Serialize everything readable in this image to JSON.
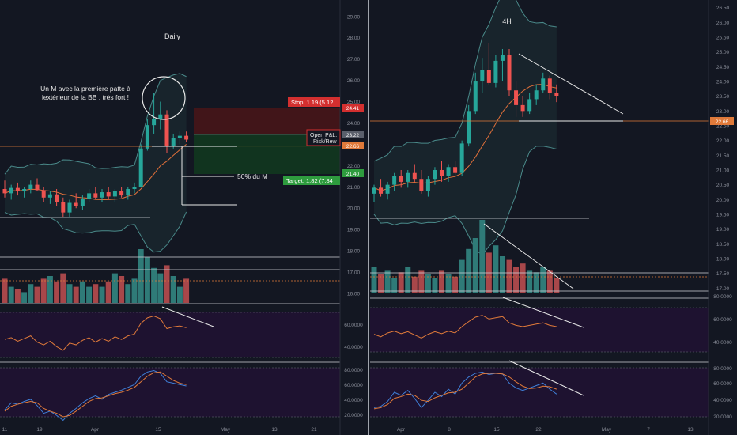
{
  "colors": {
    "background": "#131722",
    "bull": "#26a69a",
    "bear": "#ef5350",
    "vol_bull": "#2f7b78",
    "vol_bear": "#a8474a",
    "bb": "#4a8a8a",
    "ma": "#e0703a",
    "panel_bg": "#1e1230",
    "stoch_k": "#3f7fd8",
    "stoch_d": "#e07a3a",
    "axis_text": "#8b8f9a",
    "stop_box": "#d32f2f",
    "target_box": "#2e9c3e",
    "price_box": "#5a5f6b",
    "level_box": "#e07a3a",
    "divider": "#d0d3da",
    "line_white": "#e8e8e8"
  },
  "left_panel": {
    "title": "Daily",
    "annotation_line1": "Un M avec la première patte à",
    "annotation_line2": "lextérieur de la BB , très fort !",
    "fifty_label": "50% du M",
    "stop_label": "Stop: 1.19 (5.12",
    "target_label": "Target: 1.82 (7.84",
    "open_pl_line1": "Open P&L:",
    "open_pl_line2": "Risk/Rew",
    "price_tags": [
      "24.41",
      "23.22",
      "22.66",
      "21.40"
    ],
    "y_ticks": [
      "29.00",
      "28.00",
      "27.00",
      "26.00",
      "25.00",
      "24.00",
      "23.00",
      "22.00",
      "21.00",
      "20.00",
      "19.00",
      "18.00",
      "17.00",
      "16.00"
    ],
    "x_ticks": [
      "11",
      "19",
      "Apr",
      "15",
      "May",
      "13",
      "21"
    ],
    "rsi_ticks": [
      "60.0000",
      "40.0000"
    ],
    "stoch_ticks": [
      "80.0000",
      "60.0000",
      "40.0000",
      "20.0000"
    ]
  },
  "right_panel": {
    "title": "4H",
    "price_tags": [
      "22.66"
    ],
    "y_ticks": [
      "26.50",
      "26.00",
      "25.50",
      "25.00",
      "24.50",
      "24.00",
      "23.50",
      "23.00",
      "22.50",
      "22.00",
      "21.50",
      "21.00",
      "20.50",
      "20.00",
      "19.50",
      "19.00",
      "18.50",
      "18.00",
      "17.50",
      "17.00"
    ],
    "x_ticks": [
      "Apr",
      "8",
      "15",
      "22",
      "May",
      "7",
      "13"
    ],
    "rsi_ticks": [
      "80.0000",
      "60.0000",
      "40.0000"
    ],
    "stoch_ticks": [
      "80.0000",
      "60.0000",
      "40.0000",
      "20.0000"
    ]
  },
  "chart_data": [
    {
      "type": "candlestick",
      "title": "Daily",
      "ylim": [
        16,
        29.4
      ],
      "candles": [
        {
          "o": 20.9,
          "h": 21.3,
          "l": 20.5,
          "c": 20.7
        },
        {
          "o": 20.7,
          "h": 21.1,
          "l": 20.4,
          "c": 20.95
        },
        {
          "o": 20.95,
          "h": 21.2,
          "l": 20.6,
          "c": 20.8
        },
        {
          "o": 20.8,
          "h": 21.0,
          "l": 20.5,
          "c": 20.9
        },
        {
          "o": 20.9,
          "h": 21.3,
          "l": 20.7,
          "c": 21.1
        },
        {
          "o": 21.1,
          "h": 21.4,
          "l": 20.8,
          "c": 20.85
        },
        {
          "o": 20.85,
          "h": 21.0,
          "l": 20.3,
          "c": 20.5
        },
        {
          "o": 20.5,
          "h": 20.8,
          "l": 20.2,
          "c": 20.65
        },
        {
          "o": 20.65,
          "h": 20.9,
          "l": 20.1,
          "c": 20.3
        },
        {
          "o": 20.3,
          "h": 20.5,
          "l": 19.6,
          "c": 19.8
        },
        {
          "o": 19.8,
          "h": 20.4,
          "l": 19.6,
          "c": 20.25
        },
        {
          "o": 20.25,
          "h": 20.7,
          "l": 20.0,
          "c": 20.1
        },
        {
          "o": 20.1,
          "h": 20.6,
          "l": 19.9,
          "c": 20.45
        },
        {
          "o": 20.45,
          "h": 20.9,
          "l": 20.3,
          "c": 20.7
        },
        {
          "o": 20.7,
          "h": 21.0,
          "l": 20.4,
          "c": 20.5
        },
        {
          "o": 20.5,
          "h": 20.9,
          "l": 20.3,
          "c": 20.75
        },
        {
          "o": 20.75,
          "h": 21.0,
          "l": 20.4,
          "c": 20.55
        },
        {
          "o": 20.55,
          "h": 20.9,
          "l": 20.3,
          "c": 20.8
        },
        {
          "o": 20.8,
          "h": 21.0,
          "l": 20.5,
          "c": 20.6
        },
        {
          "o": 20.6,
          "h": 21.0,
          "l": 20.4,
          "c": 20.9
        },
        {
          "o": 20.9,
          "h": 21.2,
          "l": 20.7,
          "c": 21.0
        },
        {
          "o": 21.0,
          "h": 23.0,
          "l": 21.0,
          "c": 22.8
        },
        {
          "o": 22.8,
          "h": 24.2,
          "l": 22.7,
          "c": 23.9
        },
        {
          "o": 23.9,
          "h": 25.4,
          "l": 23.5,
          "c": 24.2
        },
        {
          "o": 24.2,
          "h": 25.0,
          "l": 23.7,
          "c": 24.4
        },
        {
          "o": 24.4,
          "h": 24.6,
          "l": 22.6,
          "c": 22.9
        },
        {
          "o": 22.9,
          "h": 23.5,
          "l": 22.8,
          "c": 23.3
        },
        {
          "o": 23.3,
          "h": 23.6,
          "l": 23.0,
          "c": 23.4
        },
        {
          "o": 23.4,
          "h": 23.6,
          "l": 23.1,
          "c": 23.22
        }
      ],
      "volume": [
        0.45,
        0.3,
        0.25,
        0.2,
        0.35,
        0.3,
        0.45,
        0.5,
        0.4,
        0.55,
        0.35,
        0.3,
        0.4,
        0.3,
        0.35,
        0.3,
        0.4,
        0.55,
        0.5,
        0.35,
        0.45,
        1.0,
        0.85,
        0.65,
        0.55,
        0.7,
        0.5,
        0.3,
        0.45
      ],
      "volume_bull": [
        false,
        true,
        false,
        true,
        true,
        false,
        false,
        true,
        false,
        false,
        true,
        false,
        true,
        true,
        false,
        true,
        false,
        true,
        false,
        true,
        true,
        true,
        true,
        true,
        true,
        false,
        true,
        true,
        false
      ],
      "rsi": [
        50,
        52,
        48,
        51,
        54,
        47,
        44,
        48,
        42,
        38,
        46,
        44,
        49,
        52,
        47,
        51,
        48,
        53,
        50,
        54,
        56,
        68,
        74,
        76,
        73,
        62,
        64,
        65,
        63
      ],
      "stoch_k": [
        30,
        40,
        38,
        42,
        45,
        36,
        25,
        28,
        22,
        15,
        25,
        32,
        40,
        46,
        50,
        45,
        52,
        55,
        58,
        62,
        66,
        78,
        84,
        86,
        82,
        70,
        68,
        66,
        64
      ],
      "stoch_d": [
        28,
        35,
        38,
        40,
        42,
        40,
        32,
        28,
        25,
        20,
        22,
        28,
        35,
        42,
        46,
        47,
        50,
        53,
        55,
        58,
        62,
        70,
        78,
        83,
        84,
        78,
        72,
        68,
        66
      ]
    },
    {
      "type": "candlestick",
      "title": "4H",
      "ylim": [
        16.9,
        26.6
      ],
      "candles": [
        {
          "o": 20.2,
          "h": 20.5,
          "l": 19.9,
          "c": 20.4
        },
        {
          "o": 20.4,
          "h": 20.7,
          "l": 20.1,
          "c": 20.2
        },
        {
          "o": 20.2,
          "h": 20.6,
          "l": 20.0,
          "c": 20.5
        },
        {
          "o": 20.5,
          "h": 20.9,
          "l": 20.3,
          "c": 20.8
        },
        {
          "o": 20.8,
          "h": 21.0,
          "l": 20.4,
          "c": 20.6
        },
        {
          "o": 20.6,
          "h": 21.0,
          "l": 20.4,
          "c": 20.9
        },
        {
          "o": 20.9,
          "h": 21.2,
          "l": 20.6,
          "c": 20.7
        },
        {
          "o": 20.7,
          "h": 21.0,
          "l": 20.2,
          "c": 20.3
        },
        {
          "o": 20.3,
          "h": 20.8,
          "l": 20.1,
          "c": 20.7
        },
        {
          "o": 20.7,
          "h": 21.1,
          "l": 20.5,
          "c": 21.0
        },
        {
          "o": 21.0,
          "h": 21.3,
          "l": 20.6,
          "c": 20.8
        },
        {
          "o": 20.8,
          "h": 21.2,
          "l": 20.6,
          "c": 21.1
        },
        {
          "o": 21.1,
          "h": 21.3,
          "l": 20.8,
          "c": 20.9
        },
        {
          "o": 20.9,
          "h": 22.0,
          "l": 20.8,
          "c": 21.9
        },
        {
          "o": 21.9,
          "h": 23.2,
          "l": 21.8,
          "c": 23.0
        },
        {
          "o": 23.0,
          "h": 24.3,
          "l": 22.9,
          "c": 24.0
        },
        {
          "o": 24.0,
          "h": 24.8,
          "l": 23.6,
          "c": 24.4
        },
        {
          "o": 24.4,
          "h": 25.3,
          "l": 23.9,
          "c": 23.95
        },
        {
          "o": 23.95,
          "h": 24.9,
          "l": 23.8,
          "c": 24.7
        },
        {
          "o": 24.7,
          "h": 25.1,
          "l": 24.0,
          "c": 24.9
        },
        {
          "o": 24.9,
          "h": 25.1,
          "l": 23.5,
          "c": 23.7
        },
        {
          "o": 23.7,
          "h": 24.0,
          "l": 22.8,
          "c": 23.2
        },
        {
          "o": 23.2,
          "h": 23.5,
          "l": 22.8,
          "c": 23.0
        },
        {
          "o": 23.0,
          "h": 23.6,
          "l": 22.9,
          "c": 23.4
        },
        {
          "o": 23.4,
          "h": 23.9,
          "l": 23.2,
          "c": 23.7
        },
        {
          "o": 23.7,
          "h": 24.3,
          "l": 23.6,
          "c": 24.1
        },
        {
          "o": 24.1,
          "h": 24.2,
          "l": 23.4,
          "c": 23.6
        },
        {
          "o": 23.6,
          "h": 23.9,
          "l": 23.3,
          "c": 23.5
        }
      ],
      "volume": [
        0.35,
        0.25,
        0.3,
        0.2,
        0.28,
        0.35,
        0.22,
        0.3,
        0.25,
        0.2,
        0.3,
        0.25,
        0.22,
        0.45,
        0.6,
        0.75,
        1.0,
        0.55,
        0.65,
        0.5,
        0.45,
        0.35,
        0.4,
        0.3,
        0.28,
        0.35,
        0.3,
        0.2
      ],
      "volume_bull": [
        true,
        false,
        true,
        true,
        false,
        true,
        false,
        false,
        true,
        true,
        false,
        true,
        false,
        true,
        true,
        true,
        true,
        false,
        true,
        true,
        false,
        false,
        false,
        true,
        true,
        true,
        false,
        false
      ],
      "rsi": [
        48,
        44,
        50,
        53,
        49,
        52,
        47,
        42,
        48,
        52,
        49,
        53,
        50,
        60,
        68,
        75,
        78,
        72,
        74,
        76,
        66,
        62,
        60,
        62,
        64,
        66,
        62,
        60
      ],
      "stoch_k": [
        30,
        32,
        40,
        55,
        50,
        58,
        45,
        30,
        42,
        55,
        48,
        60,
        52,
        70,
        80,
        86,
        88,
        84,
        86,
        85,
        70,
        62,
        58,
        62,
        66,
        70,
        60,
        52
      ],
      "stoch_d": [
        28,
        30,
        35,
        45,
        48,
        52,
        50,
        42,
        40,
        46,
        50,
        54,
        55,
        60,
        70,
        80,
        85,
        86,
        86,
        85,
        80,
        72,
        65,
        61,
        62,
        65,
        64,
        60
      ]
    }
  ]
}
